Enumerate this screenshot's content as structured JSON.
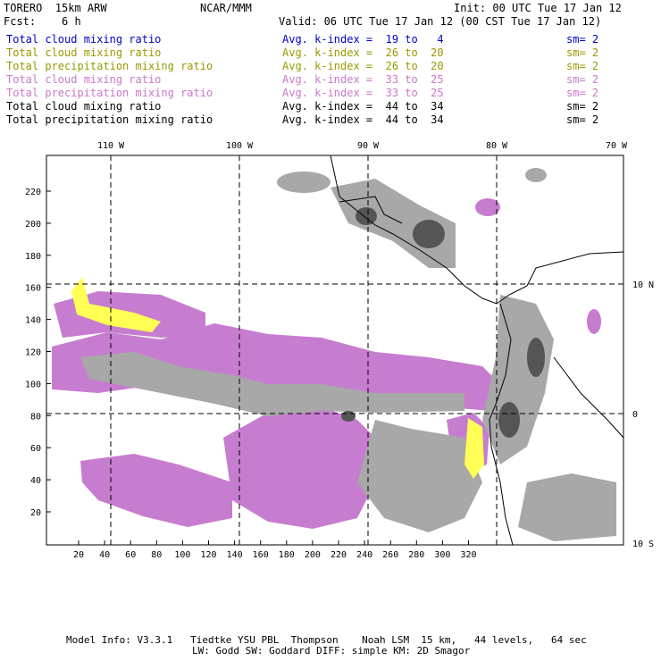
{
  "header": {
    "model": "TORERO  15km ARW",
    "center": "NCAR/MMM",
    "init": "Init: 00 UTC Tue 17 Jan 12",
    "fcst": "Fcst:    6 h",
    "valid": "Valid: 06 UTC Tue 17 Jan 12 (00 CST Tue 17 Jan 12)"
  },
  "legend": [
    {
      "field": "Total cloud mixing ratio",
      "kindex": "Avg. k-index =  19 to   4",
      "sm": "sm= 2",
      "color": "#0000cc"
    },
    {
      "field": "Total cloud mixing ratio",
      "kindex": "Avg. k-index =  26 to  20",
      "sm": "sm= 2",
      "color": "#999900"
    },
    {
      "field": "Total precipitation mixing ratio",
      "kindex": "Avg. k-index =  26 to  20",
      "sm": "sm= 2",
      "color": "#999900"
    },
    {
      "field": "Total cloud mixing ratio",
      "kindex": "Avg. k-index =  33 to  25",
      "sm": "sm= 2",
      "color": "#cc77cc"
    },
    {
      "field": "Total precipitation mixing ratio",
      "kindex": "Avg. k-index =  33 to  25",
      "sm": "sm= 2",
      "color": "#cc77cc"
    },
    {
      "field": "Total cloud mixing ratio",
      "kindex": "Avg. k-index =  44 to  34",
      "sm": "sm= 2",
      "color": "#000000"
    },
    {
      "field": "Total precipitation mixing ratio",
      "kindex": "Avg. k-index =  44 to  34",
      "sm": "sm= 2",
      "color": "#000000"
    }
  ],
  "map": {
    "lon_labels": [
      "110 W",
      "100 W",
      "90 W",
      "80 W",
      "70 W"
    ],
    "lat_labels": [
      "10 N",
      "0",
      "10 S"
    ],
    "x_ticks": [
      "20",
      "40",
      "60",
      "80",
      "100",
      "120",
      "140",
      "160",
      "180",
      "200",
      "220",
      "240",
      "260",
      "280",
      "300",
      "320"
    ],
    "y_ticks": [
      "20",
      "40",
      "60",
      "80",
      "100",
      "120",
      "140",
      "160",
      "180",
      "200",
      "220"
    ],
    "colors": {
      "magenta": "#c77dcf",
      "gray": "#a8a8a8",
      "dark": "#555555",
      "yellow": "#ffff55",
      "line": "#000000"
    }
  },
  "footer": {
    "line1": "Model Info: V3.3.1   Tiedtke YSU PBL  Thompson    Noah LSM  15 km,   44 levels,   64 sec",
    "line2": "LW: Godd SW: Goddard DIFF: simple KM: 2D Smagor"
  }
}
